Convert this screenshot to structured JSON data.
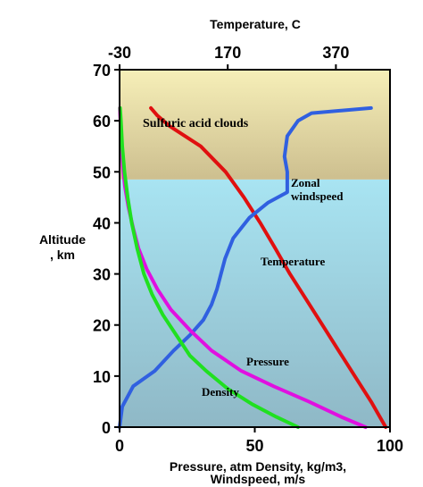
{
  "chart_data": {
    "type": "line",
    "title": "",
    "top_axis": {
      "label": "Temperature, C",
      "ticks": [
        "-30",
        "170",
        "370"
      ],
      "tick_values": [
        -30,
        170,
        370
      ],
      "range": [
        -30,
        470
      ]
    },
    "bottom_axis": {
      "label_line1": "Pressure, atm  Density, kg/m3,",
      "label_line2": "Windspeed, m/s",
      "ticks": [
        "0",
        "50",
        "100"
      ],
      "tick_values": [
        0,
        50,
        100
      ],
      "range": [
        0,
        100
      ]
    },
    "left_axis": {
      "label_line1": "Altitude",
      "label_line2": ", km",
      "ticks": [
        "0",
        "10",
        "20",
        "30",
        "40",
        "50",
        "60",
        "70"
      ],
      "tick_values": [
        0,
        10,
        20,
        30,
        40,
        50,
        60,
        70
      ],
      "range": [
        0,
        70
      ]
    },
    "bands": [
      {
        "from": 0,
        "to": 48.5,
        "color_top": "#a8e4f2",
        "color_bottom": "#8fb8c6"
      },
      {
        "from": 48.5,
        "to": 70,
        "color_top": "#f6efb8",
        "color_bottom": "#cdbf8f"
      }
    ],
    "series": [
      {
        "key": "temperature",
        "axis": "top",
        "color": "#e01010",
        "points": [
          [
            462,
            0
          ],
          [
            435,
            5
          ],
          [
            405,
            10
          ],
          [
            375,
            15
          ],
          [
            345,
            20
          ],
          [
            315,
            25
          ],
          [
            285,
            30
          ],
          [
            258,
            35
          ],
          [
            230,
            40
          ],
          [
            200,
            45
          ],
          [
            166,
            50
          ],
          [
            120,
            55
          ],
          [
            62,
            59
          ],
          [
            40,
            61
          ],
          [
            28,
            62.5
          ]
        ]
      },
      {
        "key": "zonal-windspeed",
        "axis": "bottom",
        "color": "#3060e0",
        "points": [
          [
            0,
            0
          ],
          [
            1,
            4
          ],
          [
            5,
            8
          ],
          [
            13,
            11
          ],
          [
            20,
            15
          ],
          [
            26,
            18
          ],
          [
            31,
            21
          ],
          [
            34,
            24
          ],
          [
            36,
            27
          ],
          [
            37.5,
            30
          ],
          [
            39,
            33
          ],
          [
            42,
            37
          ],
          [
            48,
            41
          ],
          [
            55,
            44
          ],
          [
            62,
            46
          ],
          [
            62,
            50
          ],
          [
            61,
            53
          ],
          [
            62,
            57
          ],
          [
            66,
            60
          ],
          [
            71,
            61.5
          ],
          [
            93,
            62.5
          ]
        ]
      },
      {
        "key": "pressure",
        "axis": "bottom",
        "color": "#e010e0",
        "points": [
          [
            91,
            0
          ],
          [
            82,
            2
          ],
          [
            70,
            5
          ],
          [
            57,
            8
          ],
          [
            45,
            11
          ],
          [
            34,
            15
          ],
          [
            26,
            19
          ],
          [
            19,
            23
          ],
          [
            14,
            27
          ],
          [
            10,
            31
          ],
          [
            7,
            35
          ],
          [
            5,
            39
          ],
          [
            3.3,
            43
          ],
          [
            2,
            47
          ],
          [
            1.2,
            51
          ],
          [
            0.7,
            55
          ],
          [
            0.3,
            60
          ],
          [
            0.1,
            62.5
          ]
        ]
      },
      {
        "key": "density",
        "axis": "bottom",
        "color": "#20e020",
        "points": [
          [
            66,
            0
          ],
          [
            58,
            2
          ],
          [
            49,
            4.5
          ],
          [
            40,
            7.5
          ],
          [
            32,
            11
          ],
          [
            26,
            14
          ],
          [
            21,
            18
          ],
          [
            16,
            22
          ],
          [
            12,
            26
          ],
          [
            9,
            30
          ],
          [
            6.5,
            35
          ],
          [
            4.5,
            40
          ],
          [
            3,
            45
          ],
          [
            1.8,
            50
          ],
          [
            1,
            55
          ],
          [
            0.5,
            60
          ],
          [
            0.2,
            62.5
          ]
        ]
      }
    ],
    "annotations": {
      "clouds": "Sulfuric acid clouds",
      "zonal_line1": "Zonal",
      "zonal_line2": "windspeed",
      "temperature": "Temperature",
      "pressure": "Pressure",
      "density": "Density"
    }
  }
}
